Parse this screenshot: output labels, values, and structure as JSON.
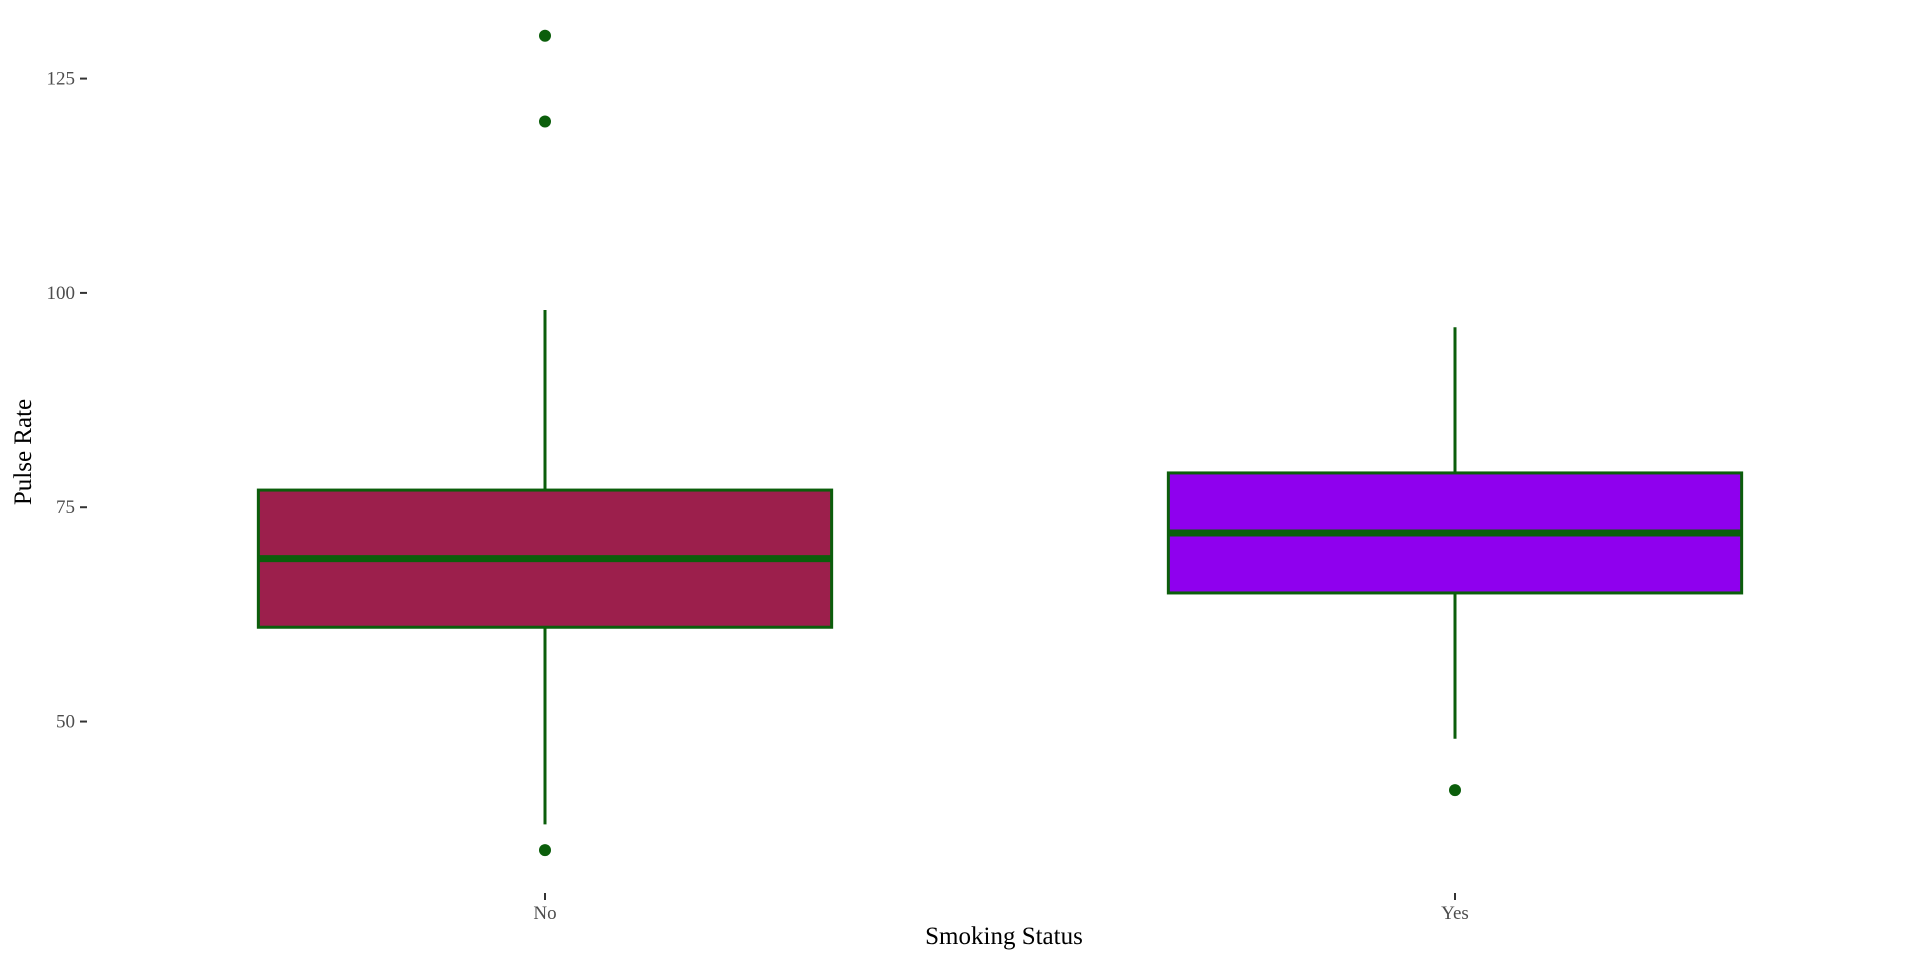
{
  "chart_data": {
    "type": "boxplot",
    "title": "",
    "xlabel": "Smoking Status",
    "ylabel": "Pulse Rate",
    "ylim": [
      30,
      133
    ],
    "yticks": [
      50,
      75,
      100,
      125
    ],
    "grid": false,
    "outline_color": "#0b5e0b",
    "categories": [
      "No",
      "Yes"
    ],
    "boxes": [
      {
        "category": "No",
        "fill": "#9c1f4c",
        "whisker_low": 38,
        "q1": 61,
        "median": 69,
        "q3": 77,
        "whisker_high": 98,
        "outliers": [
          35,
          120,
          130
        ]
      },
      {
        "category": "Yes",
        "fill": "#8f00ee",
        "whisker_low": 48,
        "q1": 65,
        "median": 72,
        "q3": 79,
        "whisker_high": 96,
        "outliers": [
          42
        ]
      }
    ]
  }
}
